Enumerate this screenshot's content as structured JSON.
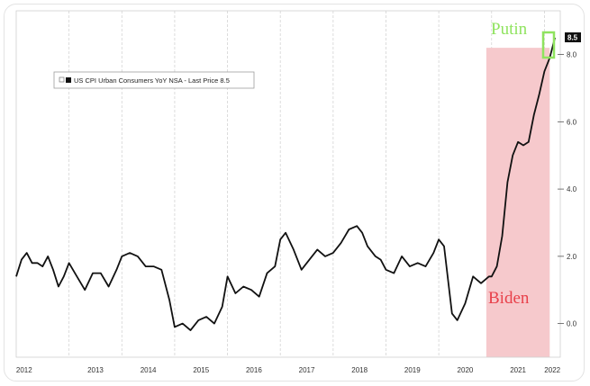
{
  "chart_data": {
    "type": "line",
    "legend": "US CPI Urban Consumers YoY NSA - Last Price 8.5",
    "last_price": "8.5",
    "x_tick_labels": [
      "2012",
      "2013",
      "2014",
      "2015",
      "2016",
      "2017",
      "2018",
      "2019",
      "2020",
      "2021",
      "2022"
    ],
    "y_tick_labels": [
      "0.0",
      "2.0",
      "4.0",
      "6.0",
      "8.0"
    ],
    "ylim": [
      -1.0,
      9.3
    ],
    "xlim": [
      2012.0,
      2022.3
    ],
    "grid": "vertical",
    "axis_position": "right",
    "annotations": [
      {
        "text": "Putin",
        "color": "#8fe35e"
      },
      {
        "text": "Biden",
        "color": "#e8404a"
      }
    ],
    "shaded_region": {
      "x_start": 2020.9,
      "x_end": 2022.1,
      "color": "#f6c9cc"
    },
    "series": [
      {
        "color": "#111111",
        "points": [
          [
            2012.0,
            1.4
          ],
          [
            2012.1,
            1.9
          ],
          [
            2012.2,
            2.1
          ],
          [
            2012.3,
            1.8
          ],
          [
            2012.4,
            1.8
          ],
          [
            2012.5,
            1.7
          ],
          [
            2012.6,
            2.0
          ],
          [
            2012.7,
            1.6
          ],
          [
            2012.8,
            1.1
          ],
          [
            2012.9,
            1.4
          ],
          [
            2013.0,
            1.8
          ],
          [
            2013.15,
            1.4
          ],
          [
            2013.3,
            1.0
          ],
          [
            2013.45,
            1.5
          ],
          [
            2013.6,
            1.5
          ],
          [
            2013.75,
            1.1
          ],
          [
            2013.9,
            1.6
          ],
          [
            2014.0,
            2.0
          ],
          [
            2014.15,
            2.1
          ],
          [
            2014.3,
            2.0
          ],
          [
            2014.45,
            1.7
          ],
          [
            2014.6,
            1.7
          ],
          [
            2014.75,
            1.6
          ],
          [
            2014.9,
            0.7
          ],
          [
            2015.0,
            -0.1
          ],
          [
            2015.15,
            0.0
          ],
          [
            2015.3,
            -0.2
          ],
          [
            2015.45,
            0.1
          ],
          [
            2015.6,
            0.2
          ],
          [
            2015.75,
            0.0
          ],
          [
            2015.9,
            0.5
          ],
          [
            2016.0,
            1.4
          ],
          [
            2016.15,
            0.9
          ],
          [
            2016.3,
            1.1
          ],
          [
            2016.45,
            1.0
          ],
          [
            2016.6,
            0.8
          ],
          [
            2016.75,
            1.5
          ],
          [
            2016.9,
            1.7
          ],
          [
            2017.0,
            2.5
          ],
          [
            2017.1,
            2.7
          ],
          [
            2017.25,
            2.2
          ],
          [
            2017.4,
            1.6
          ],
          [
            2017.55,
            1.9
          ],
          [
            2017.7,
            2.2
          ],
          [
            2017.85,
            2.0
          ],
          [
            2018.0,
            2.1
          ],
          [
            2018.15,
            2.4
          ],
          [
            2018.3,
            2.8
          ],
          [
            2018.45,
            2.9
          ],
          [
            2018.55,
            2.7
          ],
          [
            2018.65,
            2.3
          ],
          [
            2018.8,
            2.0
          ],
          [
            2018.9,
            1.9
          ],
          [
            2019.0,
            1.6
          ],
          [
            2019.15,
            1.5
          ],
          [
            2019.3,
            2.0
          ],
          [
            2019.45,
            1.7
          ],
          [
            2019.6,
            1.8
          ],
          [
            2019.75,
            1.7
          ],
          [
            2019.9,
            2.1
          ],
          [
            2020.0,
            2.5
          ],
          [
            2020.1,
            2.3
          ],
          [
            2020.25,
            0.3
          ],
          [
            2020.35,
            0.1
          ],
          [
            2020.5,
            0.6
          ],
          [
            2020.65,
            1.4
          ],
          [
            2020.8,
            1.2
          ],
          [
            2020.95,
            1.4
          ],
          [
            2021.0,
            1.4
          ],
          [
            2021.1,
            1.7
          ],
          [
            2021.2,
            2.6
          ],
          [
            2021.3,
            4.2
          ],
          [
            2021.4,
            5.0
          ],
          [
            2021.5,
            5.4
          ],
          [
            2021.6,
            5.3
          ],
          [
            2021.7,
            5.4
          ],
          [
            2021.8,
            6.2
          ],
          [
            2021.9,
            6.8
          ],
          [
            2022.0,
            7.5
          ],
          [
            2022.1,
            7.9
          ],
          [
            2022.2,
            8.5
          ]
        ]
      }
    ]
  }
}
